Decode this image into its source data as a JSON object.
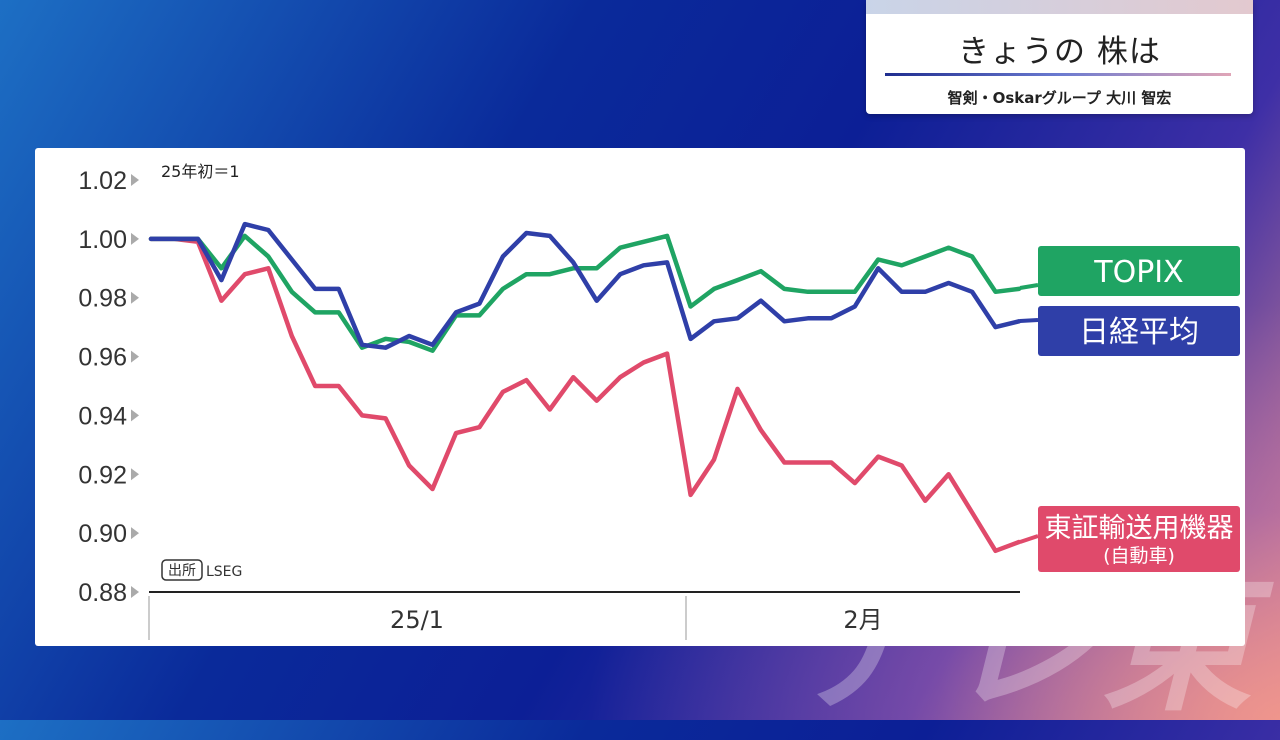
{
  "header": {
    "title": "きょうの 株は",
    "subtitle": "智剣・Oskarグループ 大川 智宏"
  },
  "watermark": "テレ東",
  "source": {
    "tag": "出所",
    "name": "LSEG"
  },
  "chart_data": {
    "type": "line",
    "note": "25年初＝1",
    "ylim": [
      0.88,
      1.02
    ],
    "yticks": [
      1.02,
      1.0,
      0.98,
      0.96,
      0.94,
      0.92,
      0.9,
      0.88
    ],
    "ytick_labels": [
      "1.02",
      "1.00",
      "0.98",
      "0.96",
      "0.94",
      "0.92",
      "0.90",
      "0.88"
    ],
    "x_period_labels": [
      "25/1",
      "2月"
    ],
    "series": [
      {
        "name": "TOPIX",
        "color": "#1fa463",
        "values": [
          1.0,
          1.0,
          1.0,
          0.99,
          1.001,
          0.994,
          0.982,
          0.975,
          0.975,
          0.963,
          0.966,
          0.965,
          0.962,
          0.974,
          0.974,
          0.983,
          0.988,
          0.988,
          0.99,
          0.99,
          0.997,
          0.999,
          1.001,
          0.977,
          0.983,
          0.986,
          0.989,
          0.983,
          0.982,
          0.982,
          0.982,
          0.993,
          0.991,
          0.994,
          0.997,
          0.994,
          0.982,
          0.983
        ]
      },
      {
        "name": "日経平均",
        "color": "#2f3fa8",
        "values": [
          1.0,
          1.0,
          1.0,
          0.986,
          1.005,
          1.003,
          0.993,
          0.983,
          0.983,
          0.964,
          0.963,
          0.967,
          0.964,
          0.975,
          0.978,
          0.994,
          1.002,
          1.001,
          0.992,
          0.979,
          0.988,
          0.991,
          0.992,
          0.966,
          0.972,
          0.973,
          0.979,
          0.972,
          0.973,
          0.973,
          0.977,
          0.99,
          0.982,
          0.982,
          0.985,
          0.982,
          0.97,
          0.972
        ]
      },
      {
        "name": "東証輸送用機器",
        "subname": "(自動車)",
        "color": "#e04a6b",
        "values": [
          1.0,
          1.0,
          0.999,
          0.979,
          0.988,
          0.99,
          0.967,
          0.95,
          0.95,
          0.94,
          0.939,
          0.923,
          0.915,
          0.934,
          0.936,
          0.948,
          0.952,
          0.942,
          0.953,
          0.945,
          0.953,
          0.958,
          0.961,
          0.913,
          0.925,
          0.949,
          0.935,
          0.924,
          0.924,
          0.924,
          0.917,
          0.926,
          0.923,
          0.911,
          0.92,
          0.907,
          0.894,
          0.897
        ]
      }
    ]
  }
}
